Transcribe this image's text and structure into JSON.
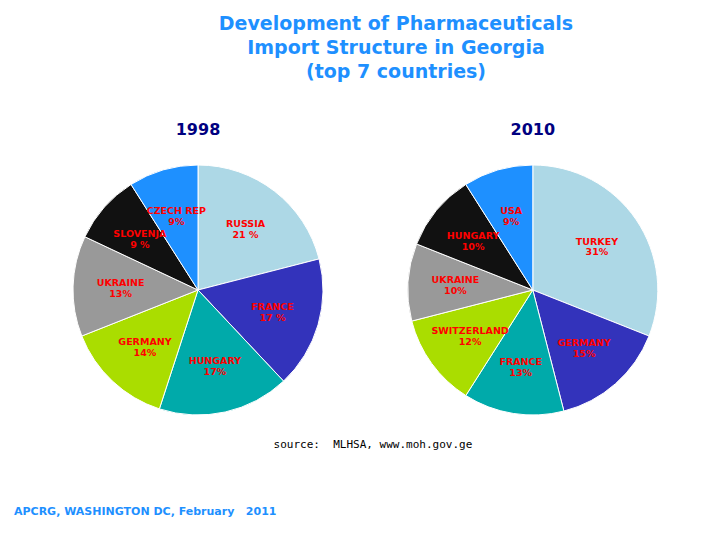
{
  "title": [
    "Development of Pharmaceuticals",
    "Import Structure in Georgia",
    "(top 7 countries)"
  ],
  "annotations": [
    "source:  MLHSA, www.moh.gov.ge",
    "APCRG, WASHINGTON DC, February   2011"
  ],
  "chart_data": [
    {
      "type": "pie",
      "title": "1998",
      "categories": [
        "RUSSIA",
        "FRANCE",
        "HUNGARY",
        "GERMANY",
        "UKRAINE",
        "SLOVENJA",
        "CZECH REP"
      ],
      "values": [
        21,
        17,
        17,
        14,
        13,
        9,
        9
      ],
      "value_labels": [
        "21 %",
        "17 %",
        "17%",
        "14%",
        "13%",
        "9 %",
        "9%"
      ],
      "colors": [
        "#ADD8E6",
        "#3333BB",
        "#00AAAA",
        "#AADD00",
        "#999999",
        "#111111",
        "#1E90FF"
      ],
      "data_labels": true
    },
    {
      "type": "pie",
      "title": "2010",
      "categories": [
        "TURKEY",
        "GERMANY",
        "FRANCE",
        "SWITZERLAND",
        "UKRAINE",
        "HUNGARY",
        "USA"
      ],
      "values": [
        31,
        15,
        13,
        12,
        10,
        10,
        9
      ],
      "value_labels": [
        "31%",
        "15%",
        "13%",
        "12%",
        "10%",
        "10%",
        "9%"
      ],
      "colors": [
        "#ADD8E6",
        "#3333BB",
        "#00AAAA",
        "#AADD00",
        "#999999",
        "#111111",
        "#1E90FF"
      ],
      "data_labels": true
    }
  ]
}
